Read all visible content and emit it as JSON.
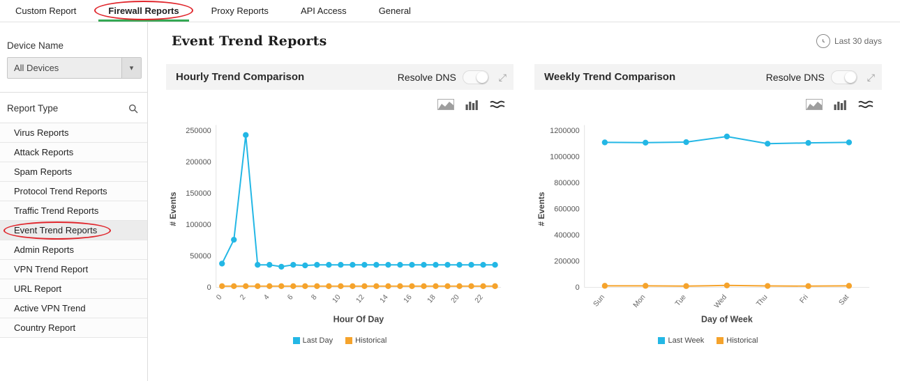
{
  "nav": {
    "tabs": [
      {
        "label": "Custom Report",
        "active": false
      },
      {
        "label": "Firewall Reports",
        "active": true,
        "annotated": true
      },
      {
        "label": "Proxy Reports",
        "active": false
      },
      {
        "label": "API Access",
        "active": false
      },
      {
        "label": "General",
        "active": false
      }
    ]
  },
  "sidebar": {
    "device_name_label": "Device Name",
    "device_select": {
      "value": "All Devices"
    },
    "report_type_label": "Report Type",
    "items": [
      {
        "label": "Virus Reports",
        "selected": false
      },
      {
        "label": "Attack Reports",
        "selected": false
      },
      {
        "label": "Spam Reports",
        "selected": false
      },
      {
        "label": "Protocol Trend Reports",
        "selected": false
      },
      {
        "label": "Traffic Trend Reports",
        "selected": false
      },
      {
        "label": "Event Trend Reports",
        "selected": true,
        "annotated": true
      },
      {
        "label": "Admin Reports",
        "selected": false
      },
      {
        "label": "VPN Trend Report",
        "selected": false
      },
      {
        "label": "URL Report",
        "selected": false
      },
      {
        "label": "Active VPN Trend",
        "selected": false
      },
      {
        "label": "Country Report",
        "selected": false
      }
    ]
  },
  "header": {
    "title": "Event Trend Reports",
    "time_range": "Last 30 days"
  },
  "panel_controls": {
    "resolve_dns_label": "Resolve DNS"
  },
  "colors": {
    "accent_green": "#35a854",
    "annotation_red": "#e0262c",
    "series_cyan": "#23b7e5",
    "series_orange": "#f5a32c"
  },
  "chart_data": [
    {
      "type": "line",
      "title": "Hourly Trend Comparison",
      "xlabel": "Hour Of Day",
      "ylabel": "# Events",
      "categories": [
        "0",
        "1",
        "2",
        "3",
        "4",
        "5",
        "6",
        "7",
        "8",
        "9",
        "10",
        "11",
        "12",
        "13",
        "14",
        "15",
        "16",
        "17",
        "18",
        "19",
        "20",
        "21",
        "22",
        "23"
      ],
      "xtick_every": 2,
      "ylim": [
        0,
        250000
      ],
      "yticks": [
        0,
        50000,
        100000,
        150000,
        200000,
        250000
      ],
      "grid": false,
      "legend_position": "bottom",
      "series": [
        {
          "name": "Last Day",
          "color": "#23b7e5",
          "values": [
            38000,
            76000,
            243000,
            36000,
            36000,
            33000,
            36000,
            35000,
            36000,
            36000,
            36000,
            36000,
            36000,
            36000,
            36000,
            36000,
            36000,
            36000,
            36000,
            36000,
            36000,
            36000,
            36000,
            36000
          ]
        },
        {
          "name": "Historical",
          "color": "#f5a32c",
          "values": [
            2000,
            2000,
            2000,
            2000,
            2000,
            2000,
            2000,
            2000,
            2000,
            2000,
            2000,
            2000,
            2000,
            2000,
            2000,
            2000,
            2000,
            2000,
            2000,
            2000,
            2000,
            2000,
            2000,
            2000
          ]
        }
      ]
    },
    {
      "type": "line",
      "title": "Weekly Trend Comparison",
      "xlabel": "Day of Week",
      "ylabel": "# Events",
      "categories": [
        "Sun",
        "Mon",
        "Tue",
        "Wed",
        "Thu",
        "Fri",
        "Sat"
      ],
      "xtick_every": 1,
      "ylim": [
        0,
        1200000
      ],
      "yticks": [
        0,
        200000,
        400000,
        600000,
        800000,
        1000000,
        1200000
      ],
      "grid": false,
      "legend_position": "bottom",
      "series": [
        {
          "name": "Last Week",
          "color": "#23b7e5",
          "values": [
            1110000,
            1108000,
            1112000,
            1155000,
            1100000,
            1106000,
            1110000
          ]
        },
        {
          "name": "Historical",
          "color": "#f5a32c",
          "values": [
            12000,
            12000,
            10000,
            15000,
            11000,
            10000,
            12000
          ]
        }
      ]
    }
  ]
}
